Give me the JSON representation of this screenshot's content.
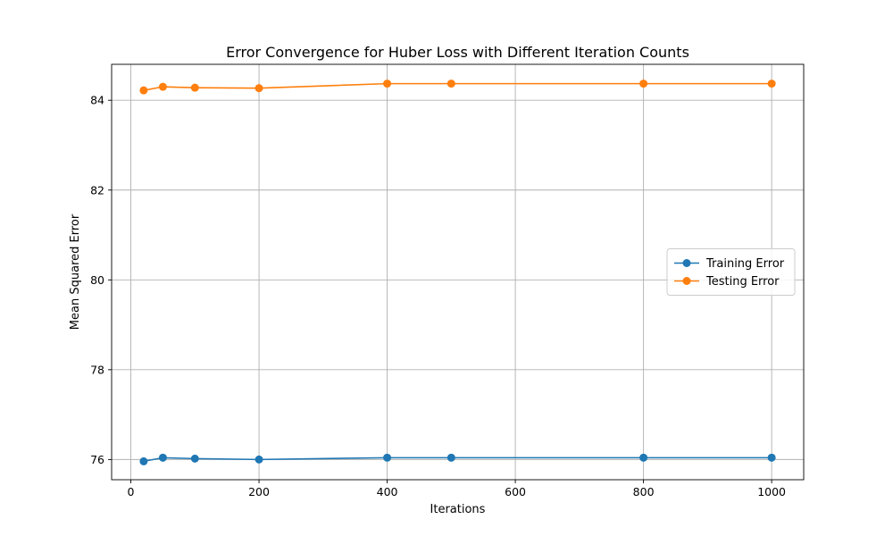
{
  "chart_data": {
    "type": "line",
    "title": "Error Convergence for Huber Loss with Different Iteration Counts",
    "xlabel": "Iterations",
    "ylabel": "Mean Squared Error",
    "xlim": [
      -30,
      1050
    ],
    "ylim": [
      75.55,
      84.8
    ],
    "xticks": [
      0,
      200,
      400,
      600,
      800,
      1000
    ],
    "yticks": [
      76,
      78,
      80,
      82,
      84
    ],
    "grid": true,
    "legend": "center-right",
    "x": [
      20,
      50,
      100,
      200,
      400,
      500,
      800,
      1000
    ],
    "series": [
      {
        "name": "Training Error",
        "color": "#1f77b4",
        "marker": "circle",
        "values": [
          75.96,
          76.04,
          76.02,
          76.0,
          76.04,
          76.04,
          76.04,
          76.04
        ]
      },
      {
        "name": "Testing Error",
        "color": "#ff7f0e",
        "marker": "circle",
        "values": [
          84.22,
          84.3,
          84.28,
          84.27,
          84.37,
          84.37,
          84.37,
          84.37
        ]
      }
    ]
  }
}
